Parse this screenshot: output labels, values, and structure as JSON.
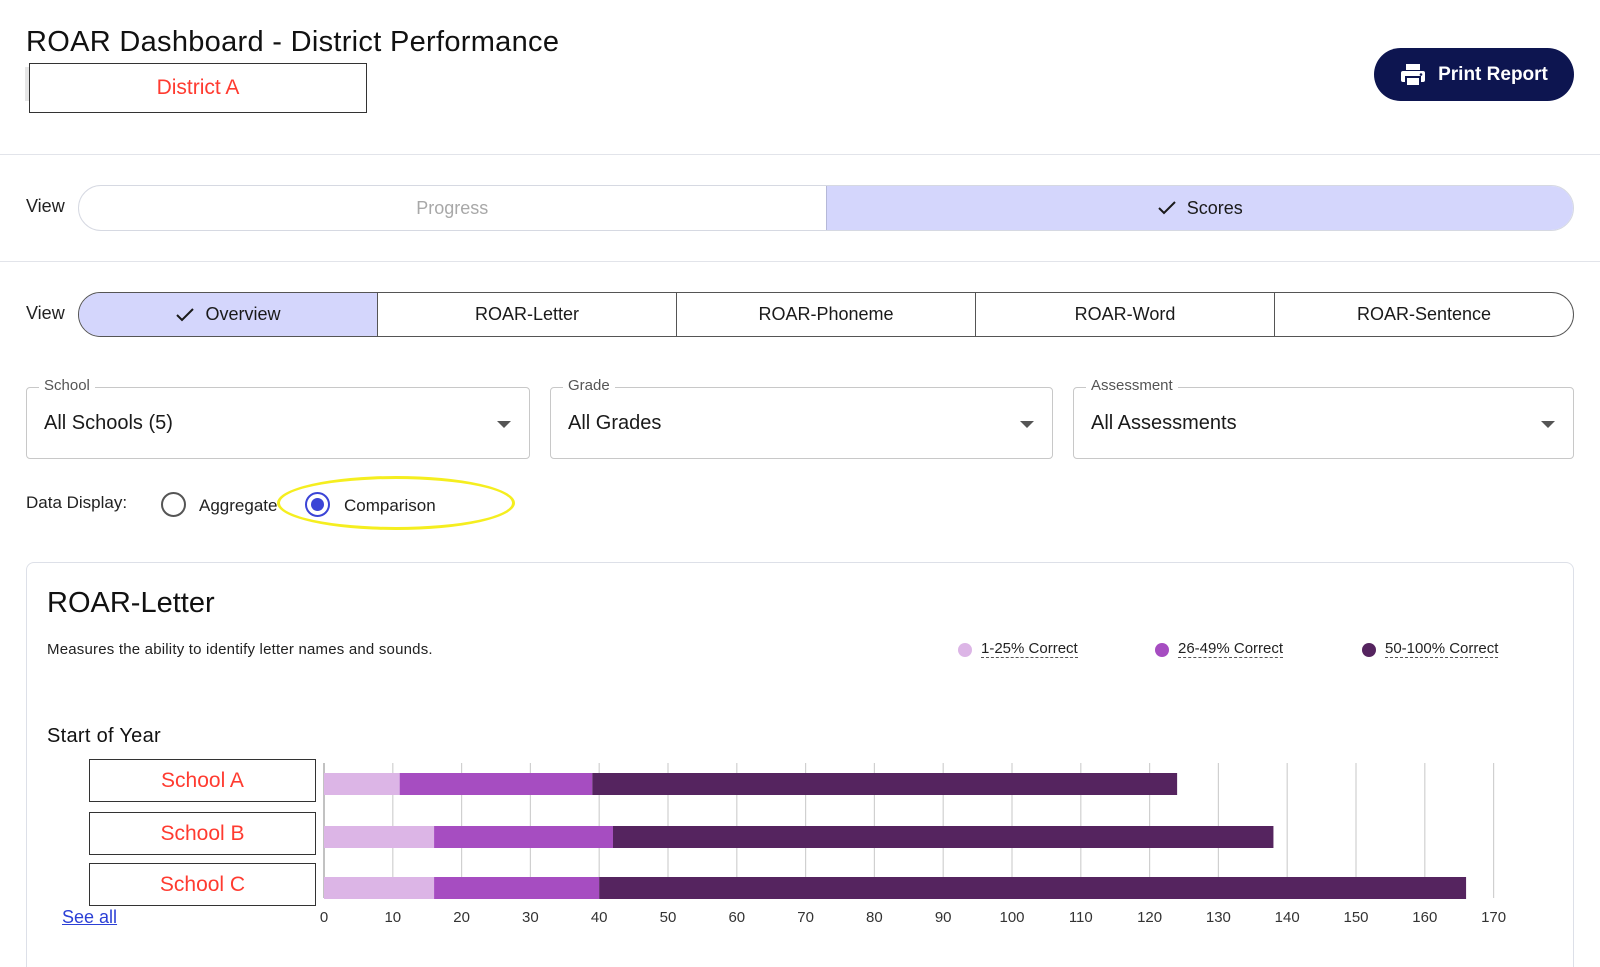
{
  "header": {
    "title": "ROAR Dashboard - District Performance",
    "district": "District A",
    "print_label": "Print Report",
    "print_icon": "printer-icon"
  },
  "view_toggle": {
    "label": "View",
    "options": [
      "Progress",
      "Scores"
    ],
    "selected": "Scores"
  },
  "tabs": {
    "label": "View",
    "items": [
      "Overview",
      "ROAR-Letter",
      "ROAR-Phoneme",
      "ROAR-Word",
      "ROAR-Sentence"
    ],
    "selected": "Overview"
  },
  "filters": {
    "school": {
      "label": "School",
      "value": "All Schools (5)"
    },
    "grade": {
      "label": "Grade",
      "value": "All Grades"
    },
    "assessment": {
      "label": "Assessment",
      "value": "All Assessments"
    }
  },
  "data_display": {
    "label": "Data Display:",
    "options": [
      "Aggregate",
      "Comparison"
    ],
    "selected": "Comparison"
  },
  "card": {
    "title": "ROAR-Letter",
    "description": "Measures the ability to identify letter names and sounds.",
    "section": "Start of Year",
    "see_all": "See all",
    "colors": {
      "low": "#dcb5e6",
      "mid": "#a64dc1",
      "high": "#55245f"
    }
  },
  "chart_data": {
    "type": "bar",
    "orientation": "horizontal",
    "stacked": true,
    "categories": [
      "School A",
      "School B",
      "School C"
    ],
    "series": [
      {
        "name": "1-25% Correct",
        "values": [
          11,
          16,
          16
        ]
      },
      {
        "name": "26-49% Correct",
        "values": [
          28,
          26,
          24
        ]
      },
      {
        "name": "50-100% Correct",
        "values": [
          85,
          96,
          126
        ]
      }
    ],
    "xlim": [
      0,
      170
    ],
    "xticks": [
      0,
      10,
      20,
      30,
      40,
      50,
      60,
      70,
      80,
      90,
      100,
      110,
      120,
      130,
      140,
      150,
      160,
      170
    ],
    "grid": true,
    "legend": "top-right"
  }
}
